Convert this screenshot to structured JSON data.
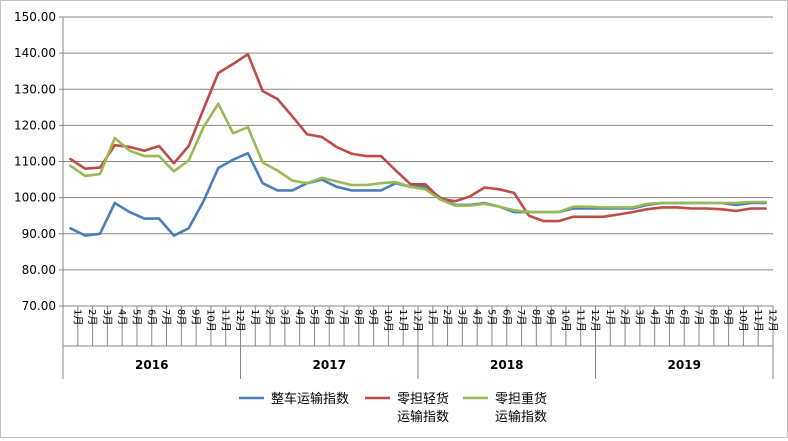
{
  "chart_data": {
    "type": "line",
    "ylim": [
      70,
      150
    ],
    "yticks": [
      "70.00",
      "80.00",
      "90.00",
      "100.00",
      "110.00",
      "120.00",
      "130.00",
      "140.00",
      "150.00"
    ],
    "month_labels": [
      "1月",
      "2月",
      "3月",
      "4月",
      "5月",
      "6月",
      "7月",
      "8月",
      "9月",
      "10月",
      "11月",
      "12月",
      "1月",
      "2月",
      "3月",
      "4月",
      "5月",
      "6月",
      "7月",
      "8月",
      "9月",
      "10月",
      "11月",
      "12月",
      "1月",
      "2月",
      "3月",
      "4月",
      "5月",
      "6月",
      "7月",
      "8月",
      "9月",
      "10月",
      "11月",
      "12月",
      "1月",
      "2月",
      "3月",
      "4月",
      "5月",
      "6月",
      "7月",
      "8月",
      "9月",
      "10月",
      "11月",
      "12月"
    ],
    "years": [
      "2016",
      "2017",
      "2018",
      "2019"
    ],
    "grid": "horizontal",
    "legend_position": "bottom",
    "series": [
      {
        "name": "整车运输指数",
        "color": "#4a7ebb",
        "values": [
          91.5,
          89.5,
          90.0,
          98.5,
          96.0,
          94.2,
          94.2,
          89.5,
          91.5,
          99.0,
          108.2,
          110.5,
          112.3,
          104.0,
          102.0,
          102.0,
          104.0,
          105.0,
          103.0,
          102.0,
          102.0,
          102.0,
          104.0,
          103.0,
          103.0,
          100.0,
          98.0,
          98.0,
          98.5,
          97.5,
          96.0,
          96.0,
          96.0,
          96.0,
          97.0,
          97.0,
          97.0,
          97.0,
          97.0,
          98.0,
          98.5,
          98.5,
          98.5,
          98.5,
          98.5,
          98.0,
          98.5,
          98.5
        ]
      },
      {
        "name": "零担轻货运输指数",
        "color": "#be4b48",
        "values": [
          110.7,
          108.0,
          108.3,
          114.5,
          114.0,
          113.0,
          114.3,
          109.5,
          114.3,
          124.5,
          134.5,
          137.0,
          139.7,
          129.5,
          127.3,
          122.5,
          117.5,
          116.8,
          114.0,
          112.2,
          111.5,
          111.5,
          107.5,
          103.7,
          103.7,
          99.7,
          99.0,
          100.3,
          102.8,
          102.3,
          101.3,
          95.0,
          93.5,
          93.5,
          94.7,
          94.7,
          94.7,
          95.3,
          96.0,
          96.8,
          97.3,
          97.3,
          97.0,
          97.0,
          96.8,
          96.3,
          97.0,
          97.0
        ]
      },
      {
        "name": "零担重货运输指数",
        "color": "#98b954",
        "values": [
          108.8,
          106.0,
          106.5,
          116.5,
          113.0,
          111.5,
          111.5,
          107.3,
          110.3,
          119.5,
          126.0,
          117.8,
          119.5,
          109.7,
          107.5,
          104.7,
          104.0,
          105.5,
          104.5,
          103.5,
          103.5,
          104.0,
          104.3,
          103.0,
          102.3,
          99.5,
          97.8,
          97.8,
          98.3,
          97.5,
          96.5,
          96.0,
          96.0,
          96.0,
          97.5,
          97.5,
          97.3,
          97.3,
          97.3,
          98.3,
          98.5,
          98.5,
          98.5,
          98.5,
          98.5,
          98.5,
          98.8,
          98.8
        ]
      }
    ],
    "legend_lines": [
      [
        "整车运输指数"
      ],
      [
        "零担轻货",
        "运输指数"
      ],
      [
        "零担重货",
        "运输指数"
      ]
    ]
  }
}
